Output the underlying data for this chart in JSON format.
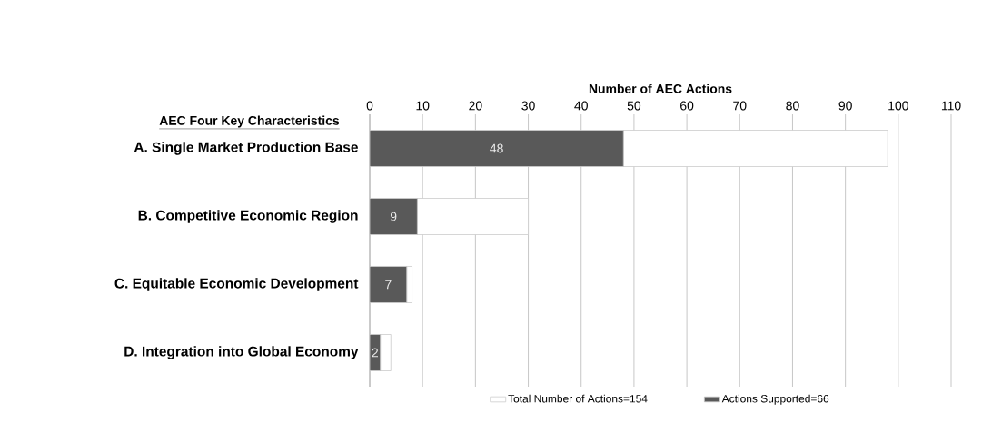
{
  "chart_data": {
    "type": "bar",
    "orientation": "horizontal",
    "stacked": true,
    "xlabel": "Number of AEC Actions",
    "ylabel": "AEC Four Key Characteristics",
    "categories": [
      "A. Single Market Production Base",
      "B. Competitive Economic Region",
      "C. Equitable Economic Development",
      "D. Integration into Global Economy"
    ],
    "series": [
      {
        "name": "Actions Supported=66",
        "color": "#595959",
        "values": [
          48,
          9,
          7,
          2
        ],
        "value_labels": [
          "48",
          "9",
          "7",
          "2"
        ]
      },
      {
        "name": "Total Number of Actions=154",
        "color": "#ffffff",
        "values": [
          50,
          21,
          1,
          2
        ]
      }
    ],
    "xlim": [
      0,
      110
    ],
    "xticks": [
      0,
      10,
      20,
      30,
      40,
      50,
      60,
      70,
      80,
      90,
      100,
      110
    ],
    "grid": "x",
    "legend": "bottom"
  }
}
